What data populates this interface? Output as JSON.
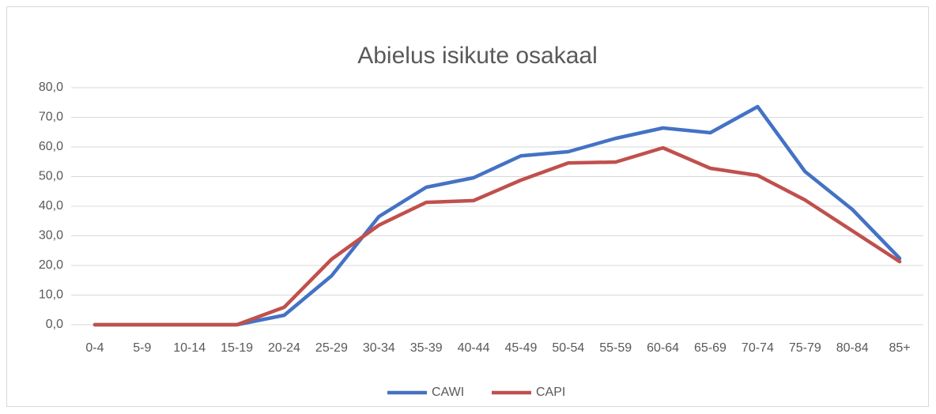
{
  "chart_data": {
    "type": "line",
    "title": "Abielus isikute osakaal",
    "categories": [
      "0-4",
      "5-9",
      "10-14",
      "15-19",
      "20-24",
      "25-29",
      "30-34",
      "35-39",
      "40-44",
      "45-49",
      "50-54",
      "55-59",
      "60-64",
      "65-69",
      "70-74",
      "75-79",
      "80-84",
      "85+"
    ],
    "series": [
      {
        "name": "CAWI",
        "color": "#4472c4",
        "values": [
          0,
          0,
          0,
          0,
          3.2,
          16.5,
          36.5,
          46.4,
          49.6,
          57,
          58.4,
          62.9,
          66.4,
          64.8,
          73.6,
          51.7,
          38.9,
          22.4
        ]
      },
      {
        "name": "CAPI",
        "color": "#c0504d",
        "values": [
          0,
          0,
          0,
          0,
          5.9,
          22.1,
          33.6,
          41.3,
          41.9,
          48.8,
          54.6,
          54.9,
          59.7,
          52.8,
          50.4,
          42.1,
          31.7,
          21.3
        ]
      }
    ],
    "ylim": [
      0,
      80
    ],
    "yticks": [
      {
        "value": 0,
        "label": "0,0"
      },
      {
        "value": 10,
        "label": "10,0"
      },
      {
        "value": 20,
        "label": "20,0"
      },
      {
        "value": 30,
        "label": "30,0"
      },
      {
        "value": 40,
        "label": "40,0"
      },
      {
        "value": 50,
        "label": "50,0"
      },
      {
        "value": 60,
        "label": "60,0"
      },
      {
        "value": 70,
        "label": "70,0"
      },
      {
        "value": 80,
        "label": "80,0"
      }
    ],
    "grid": true,
    "legend": "bottom"
  }
}
